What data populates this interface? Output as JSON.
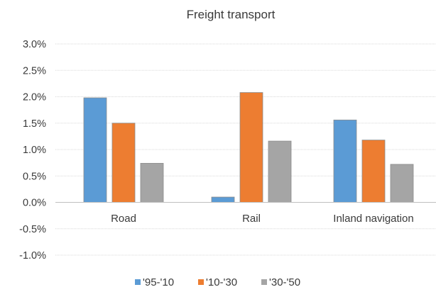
{
  "chart_data": {
    "type": "bar",
    "title": "Freight transport",
    "xlabel": "",
    "ylabel": "",
    "categories": [
      "Road",
      "Rail",
      "Inland navigation"
    ],
    "series": [
      {
        "name": "'95-'10",
        "color": "#5b9bd5",
        "values": [
          1.98,
          0.1,
          1.56
        ]
      },
      {
        "name": "'10-'30",
        "color": "#ed7d31",
        "values": [
          1.5,
          2.08,
          1.18
        ]
      },
      {
        "name": "'30-'50",
        "color": "#a5a5a5",
        "values": [
          0.74,
          1.16,
          0.72
        ]
      }
    ],
    "ylim": [
      -1.0,
      3.0
    ],
    "yticks": [
      "3.0%",
      "2.5%",
      "2.0%",
      "1.5%",
      "1.0%",
      "0.5%",
      "0.0%",
      "-0.5%",
      "-1.0%"
    ],
    "ytick_values": [
      3.0,
      2.5,
      2.0,
      1.5,
      1.0,
      0.5,
      0.0,
      -0.5,
      -1.0
    ],
    "grid": true,
    "legend_position": "bottom",
    "gridline_color": "#d9d9d9",
    "bar_outline_color": "#8c8c8c"
  }
}
